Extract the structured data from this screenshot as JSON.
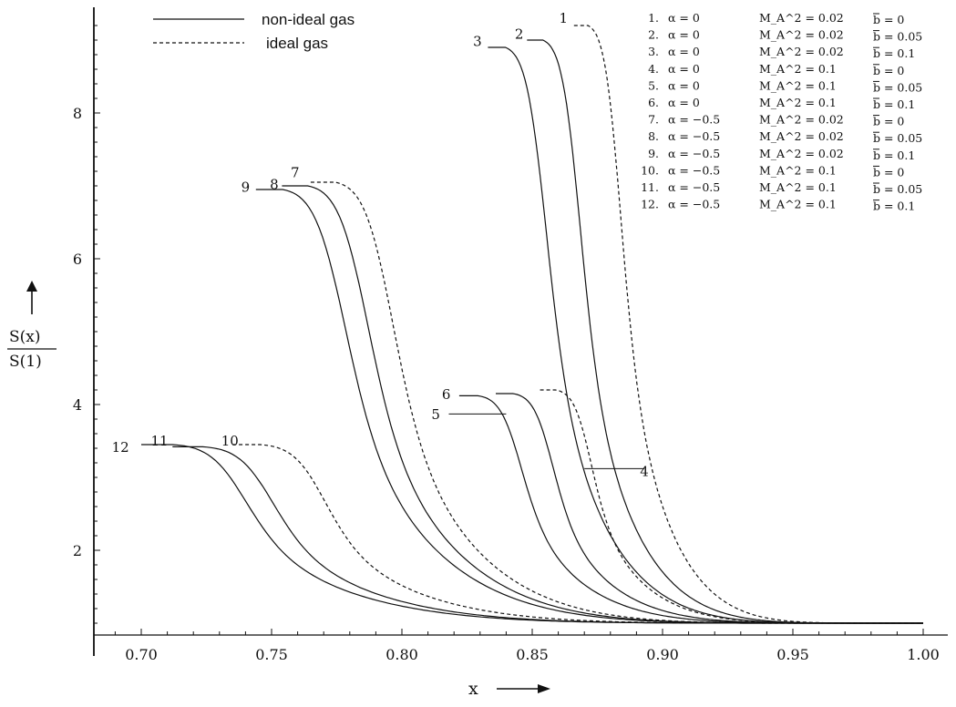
{
  "chart_data": {
    "type": "line",
    "xlabel": "x",
    "ylabel_num": "S(x)",
    "ylabel_den": "S(1)",
    "xlim": [
      0.68,
      1.0
    ],
    "ylim": [
      0.85,
      9.4
    ],
    "x_ticks": [
      0.7,
      0.75,
      0.8,
      0.85,
      0.9,
      0.95,
      1.0
    ],
    "x_tick_labels": [
      "0.70",
      "0.75",
      "0.80",
      "0.85",
      "0.90",
      "0.95",
      "1.00"
    ],
    "y_ticks": [
      2,
      4,
      6,
      8
    ],
    "y_tick_labels": [
      "2",
      "4",
      "6",
      "8"
    ],
    "grid": false,
    "legend_position": "top-left",
    "legend": [
      {
        "label": "non-ideal gas",
        "style": "solid"
      },
      {
        "label": "ideal gas",
        "style": "dashed"
      }
    ],
    "key_rows": [
      {
        "num": "1.",
        "alpha": "α = 0",
        "mach": "M_A^2 = 0.02",
        "b": "b = 0"
      },
      {
        "num": "2.",
        "alpha": "α = 0",
        "mach": "M_A^2 = 0.02",
        "b": "b = 0.05"
      },
      {
        "num": "3.",
        "alpha": "α = 0",
        "mach": "M_A^2 = 0.02",
        "b": "b = 0.1"
      },
      {
        "num": "4.",
        "alpha": "α = 0",
        "mach": "M_A^2 = 0.1",
        "b": "b = 0"
      },
      {
        "num": "5.",
        "alpha": "α = 0",
        "mach": "M_A^2 = 0.1",
        "b": "b = 0.05"
      },
      {
        "num": "6.",
        "alpha": "α = 0",
        "mach": "M_A^2 = 0.1",
        "b": "b = 0.1"
      },
      {
        "num": "7.",
        "alpha": "α = −0.5",
        "mach": "M_A^2 = 0.02",
        "b": "b = 0"
      },
      {
        "num": "8.",
        "alpha": "α = −0.5",
        "mach": "M_A^2 = 0.02",
        "b": "b = 0.05"
      },
      {
        "num": "9.",
        "alpha": "α = −0.5",
        "mach": "M_A^2 = 0.02",
        "b": "b = 0.1"
      },
      {
        "num": "10.",
        "alpha": "α = −0.5",
        "mach": "M_A^2 = 0.1",
        "b": "b = 0"
      },
      {
        "num": "11.",
        "alpha": "α = −0.5",
        "mach": "M_A^2 = 0.1",
        "b": "b = 0.05"
      },
      {
        "num": "12.",
        "alpha": "α = −0.5",
        "mach": "M_A^2 = 0.1",
        "b": "b = 0.1"
      }
    ],
    "series": [
      {
        "name": "1",
        "style": "dashed",
        "xstart": 0.866,
        "ystart": 9.2,
        "alpha": 0.55
      },
      {
        "name": "2",
        "style": "solid",
        "xstart": 0.848,
        "ystart": 9.0,
        "alpha": 0.55
      },
      {
        "name": "3",
        "style": "solid",
        "xstart": 0.833,
        "ystart": 8.9,
        "alpha": 0.55
      },
      {
        "name": "4",
        "style": "dashed",
        "xstart": 0.853,
        "ystart": 4.2,
        "alpha": 0.55
      },
      {
        "name": "5",
        "style": "solid",
        "xstart": 0.836,
        "ystart": 4.15,
        "alpha": 0.55
      },
      {
        "name": "6",
        "style": "solid",
        "xstart": 0.822,
        "ystart": 4.12,
        "alpha": 0.55
      },
      {
        "name": "7",
        "style": "dashed",
        "xstart": 0.765,
        "ystart": 7.05,
        "alpha": 0.55
      },
      {
        "name": "8",
        "style": "solid",
        "xstart": 0.754,
        "ystart": 7.0,
        "alpha": 0.55
      },
      {
        "name": "9",
        "style": "solid",
        "xstart": 0.744,
        "ystart": 6.95,
        "alpha": 0.55
      },
      {
        "name": "10",
        "style": "dashed",
        "xstart": 0.735,
        "ystart": 3.45,
        "alpha": 0.55
      },
      {
        "name": "11",
        "style": "solid",
        "xstart": 0.712,
        "ystart": 3.42,
        "alpha": 0.55
      },
      {
        "name": "12",
        "style": "solid",
        "xstart": 0.7,
        "ystart": 3.45,
        "alpha": 0.55
      }
    ],
    "curve_labels": [
      {
        "text": "1",
        "x": 0.862,
        "y": 9.3
      },
      {
        "text": "2",
        "x": 0.845,
        "y": 9.08
      },
      {
        "text": "3",
        "x": 0.829,
        "y": 8.98
      },
      {
        "text": "4",
        "x": 0.893,
        "y": 3.08
      },
      {
        "text": "5",
        "x": 0.813,
        "y": 3.86
      },
      {
        "text": "6",
        "x": 0.817,
        "y": 4.14
      },
      {
        "text": "7",
        "x": 0.759,
        "y": 7.18
      },
      {
        "text": "8",
        "x": 0.751,
        "y": 7.02
      },
      {
        "text": "9",
        "x": 0.74,
        "y": 6.98
      },
      {
        "text": "10",
        "x": 0.734,
        "y": 3.5
      },
      {
        "text": "11",
        "x": 0.707,
        "y": 3.5
      },
      {
        "text": "12",
        "x": 0.692,
        "y": 3.41
      }
    ],
    "pointer_lines": [
      {
        "target": "4",
        "x1": 0.87,
        "y1": 3.12,
        "x2": 0.893,
        "y2": 3.12
      },
      {
        "target": "5",
        "x1": 0.818,
        "y1": 3.87,
        "x2": 0.84,
        "y2": 3.87
      }
    ]
  }
}
